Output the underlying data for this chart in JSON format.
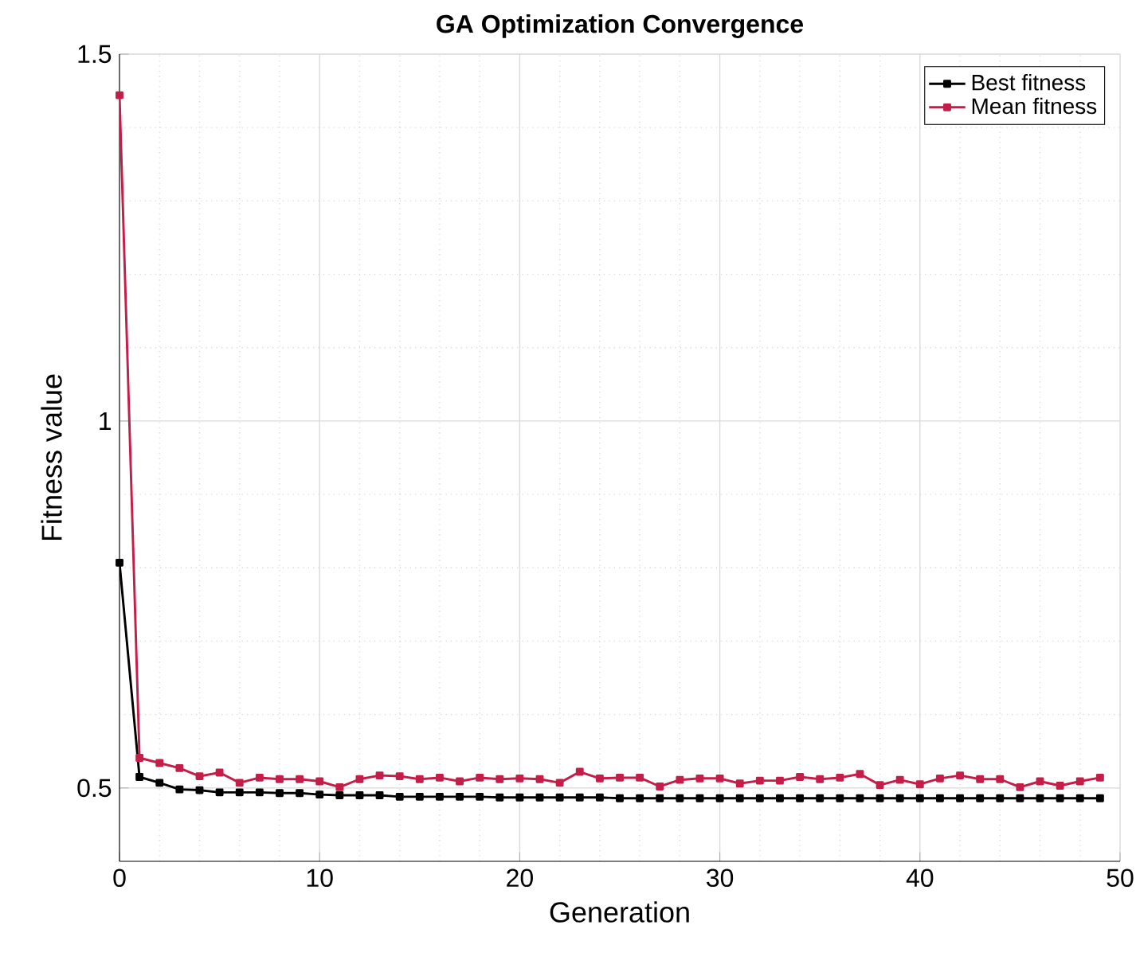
{
  "chart_data": {
    "type": "line",
    "title": "GA Optimization Convergence",
    "xlabel": "Generation",
    "ylabel": "Fitness value",
    "x": [
      0,
      1,
      2,
      3,
      4,
      5,
      6,
      7,
      8,
      9,
      10,
      11,
      12,
      13,
      14,
      15,
      16,
      17,
      18,
      19,
      20,
      21,
      22,
      23,
      24,
      25,
      26,
      27,
      28,
      29,
      30,
      31,
      32,
      33,
      34,
      35,
      36,
      37,
      38,
      39,
      40,
      41,
      42,
      43,
      44,
      45,
      46,
      47,
      48,
      49
    ],
    "series": [
      {
        "name": "Best fitness",
        "color": "#000000",
        "values": [
          0.807,
          0.515,
          0.507,
          0.498,
          0.497,
          0.494,
          0.494,
          0.494,
          0.493,
          0.493,
          0.491,
          0.49,
          0.49,
          0.49,
          0.488,
          0.488,
          0.488,
          0.488,
          0.488,
          0.487,
          0.487,
          0.487,
          0.487,
          0.487,
          0.487,
          0.486,
          0.486,
          0.486,
          0.486,
          0.486,
          0.486,
          0.486,
          0.486,
          0.486,
          0.486,
          0.486,
          0.486,
          0.486,
          0.486,
          0.486,
          0.486,
          0.486,
          0.486,
          0.486,
          0.486,
          0.486,
          0.486,
          0.486,
          0.486,
          0.486
        ]
      },
      {
        "name": "Mean fitness",
        "color": "#c41e48",
        "values": [
          1.444,
          0.541,
          0.534,
          0.527,
          0.516,
          0.521,
          0.507,
          0.514,
          0.512,
          0.512,
          0.509,
          0.501,
          0.512,
          0.517,
          0.516,
          0.512,
          0.514,
          0.509,
          0.514,
          0.512,
          0.513,
          0.512,
          0.507,
          0.522,
          0.513,
          0.514,
          0.514,
          0.502,
          0.511,
          0.513,
          0.513,
          0.506,
          0.51,
          0.51,
          0.515,
          0.512,
          0.514,
          0.519,
          0.504,
          0.511,
          0.505,
          0.513,
          0.517,
          0.512,
          0.512,
          0.501,
          0.509,
          0.503,
          0.509,
          0.514
        ]
      }
    ],
    "xlim": [
      0,
      50
    ],
    "xticks": [
      0,
      10,
      20,
      30,
      40,
      50
    ],
    "ylim": [
      0.4,
      1.5
    ],
    "yticks": [
      0.5,
      1,
      1.5
    ],
    "grid": true,
    "legend": "top right",
    "marker": "square",
    "line_style": "solid"
  }
}
